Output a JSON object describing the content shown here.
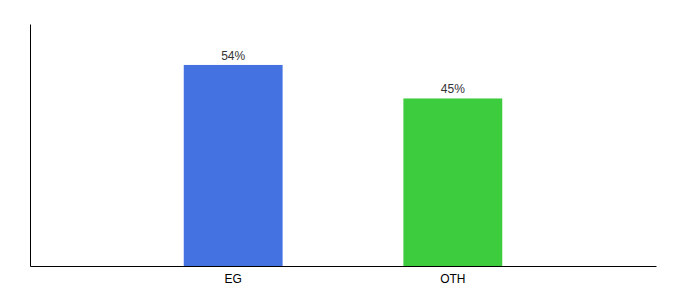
{
  "chart_data": {
    "type": "bar",
    "categories": [
      "EG",
      "OTH"
    ],
    "values": [
      54,
      45
    ],
    "value_labels": [
      "54%",
      "45%"
    ],
    "colors": [
      "#4472e0",
      "#3dcc3d"
    ],
    "ylim": [
      0,
      65
    ],
    "data_labels": true,
    "tick_labels": "x",
    "grid": false
  }
}
